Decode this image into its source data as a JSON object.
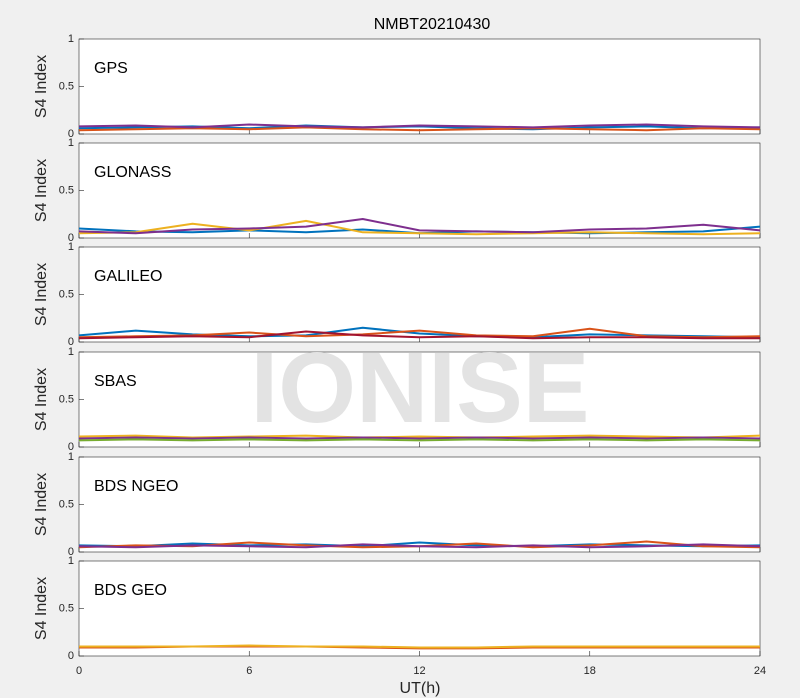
{
  "title": "NMBT20210430",
  "xlabel": "UT(h)",
  "watermark": "IONISE",
  "chart_data": [
    {
      "type": "line",
      "label": "GPS",
      "ylabel": "S4 Index",
      "x": [
        0,
        2,
        4,
        6,
        8,
        10,
        12,
        14,
        16,
        18,
        20,
        22,
        24
      ],
      "xlim": [
        0,
        24
      ],
      "xticks": [
        0,
        6,
        12,
        18,
        24
      ],
      "ylim": [
        0,
        1
      ],
      "yticks": [
        0,
        0.5,
        1
      ],
      "series": [
        {
          "color": "#0072BD",
          "values": [
            0.06,
            0.07,
            0.08,
            0.06,
            0.09,
            0.07,
            0.08,
            0.06,
            0.05,
            0.07,
            0.08,
            0.06,
            0.07
          ]
        },
        {
          "color": "#D95319",
          "values": [
            0.04,
            0.05,
            0.06,
            0.05,
            0.07,
            0.05,
            0.04,
            0.05,
            0.06,
            0.05,
            0.04,
            0.06,
            0.05
          ]
        },
        {
          "color": "#7E2F8E",
          "values": [
            0.08,
            0.09,
            0.07,
            0.1,
            0.08,
            0.07,
            0.09,
            0.08,
            0.07,
            0.09,
            0.1,
            0.08,
            0.07
          ]
        }
      ]
    },
    {
      "type": "line",
      "label": "GLONASS",
      "ylabel": "S4 Index",
      "x": [
        0,
        2,
        4,
        6,
        8,
        10,
        12,
        14,
        16,
        18,
        20,
        22,
        24
      ],
      "xlim": [
        0,
        24
      ],
      "xticks": [
        0,
        6,
        12,
        18,
        24
      ],
      "ylim": [
        0,
        1
      ],
      "yticks": [
        0,
        0.5,
        1
      ],
      "series": [
        {
          "color": "#0072BD",
          "values": [
            0.1,
            0.07,
            0.06,
            0.08,
            0.06,
            0.09,
            0.05,
            0.07,
            0.06,
            0.05,
            0.06,
            0.07,
            0.12
          ]
        },
        {
          "color": "#EDB120",
          "values": [
            0.05,
            0.06,
            0.15,
            0.08,
            0.18,
            0.06,
            0.05,
            0.04,
            0.05,
            0.06,
            0.05,
            0.04,
            0.05
          ]
        },
        {
          "color": "#7E2F8E",
          "values": [
            0.07,
            0.05,
            0.09,
            0.1,
            0.12,
            0.2,
            0.08,
            0.07,
            0.06,
            0.09,
            0.1,
            0.14,
            0.08
          ]
        }
      ]
    },
    {
      "type": "line",
      "label": "GALILEO",
      "ylabel": "S4 Index",
      "x": [
        0,
        2,
        4,
        6,
        8,
        10,
        12,
        14,
        16,
        18,
        20,
        22,
        24
      ],
      "xlim": [
        0,
        24
      ],
      "xticks": [
        0,
        6,
        12,
        18,
        24
      ],
      "ylim": [
        0,
        1
      ],
      "yticks": [
        0,
        0.5,
        1
      ],
      "series": [
        {
          "color": "#0072BD",
          "values": [
            0.07,
            0.12,
            0.08,
            0.06,
            0.07,
            0.15,
            0.09,
            0.06,
            0.05,
            0.08,
            0.07,
            0.06,
            0.05
          ]
        },
        {
          "color": "#D95319",
          "values": [
            0.05,
            0.06,
            0.07,
            0.1,
            0.06,
            0.08,
            0.12,
            0.07,
            0.06,
            0.14,
            0.06,
            0.05,
            0.06
          ]
        },
        {
          "color": "#A2142F",
          "values": [
            0.04,
            0.05,
            0.06,
            0.05,
            0.11,
            0.07,
            0.05,
            0.06,
            0.04,
            0.05,
            0.05,
            0.04,
            0.04
          ]
        }
      ]
    },
    {
      "type": "line",
      "label": "SBAS",
      "ylabel": "S4 Index",
      "x": [
        0,
        2,
        4,
        6,
        8,
        10,
        12,
        14,
        16,
        18,
        20,
        22,
        24
      ],
      "xlim": [
        0,
        24
      ],
      "xticks": [
        0,
        6,
        12,
        18,
        24
      ],
      "ylim": [
        0,
        1
      ],
      "yticks": [
        0,
        0.5,
        1
      ],
      "series": [
        {
          "color": "#EDB120",
          "values": [
            0.11,
            0.12,
            0.1,
            0.11,
            0.12,
            0.1,
            0.11,
            0.1,
            0.11,
            0.12,
            0.11,
            0.1,
            0.12
          ]
        },
        {
          "color": "#7E2F8E",
          "values": [
            0.09,
            0.1,
            0.09,
            0.1,
            0.09,
            0.1,
            0.09,
            0.1,
            0.09,
            0.1,
            0.09,
            0.1,
            0.09
          ]
        },
        {
          "color": "#77AC30",
          "values": [
            0.07,
            0.08,
            0.07,
            0.08,
            0.07,
            0.08,
            0.07,
            0.08,
            0.07,
            0.08,
            0.07,
            0.08,
            0.07
          ]
        }
      ]
    },
    {
      "type": "line",
      "label": "BDS NGEO",
      "ylabel": "S4 Index",
      "x": [
        0,
        2,
        4,
        6,
        8,
        10,
        12,
        14,
        16,
        18,
        20,
        22,
        24
      ],
      "xlim": [
        0,
        24
      ],
      "xticks": [
        0,
        6,
        12,
        18,
        24
      ],
      "ylim": [
        0,
        1
      ],
      "yticks": [
        0,
        0.5,
        1
      ],
      "series": [
        {
          "color": "#0072BD",
          "values": [
            0.07,
            0.06,
            0.09,
            0.07,
            0.08,
            0.06,
            0.1,
            0.07,
            0.06,
            0.08,
            0.07,
            0.06,
            0.07
          ]
        },
        {
          "color": "#D95319",
          "values": [
            0.05,
            0.07,
            0.06,
            0.1,
            0.07,
            0.05,
            0.06,
            0.09,
            0.05,
            0.07,
            0.11,
            0.06,
            0.05
          ]
        },
        {
          "color": "#7E2F8E",
          "values": [
            0.06,
            0.05,
            0.07,
            0.06,
            0.05,
            0.08,
            0.06,
            0.05,
            0.07,
            0.05,
            0.06,
            0.08,
            0.06
          ]
        }
      ]
    },
    {
      "type": "line",
      "label": "BDS GEO",
      "ylabel": "S4 Index",
      "x": [
        0,
        2,
        4,
        6,
        8,
        10,
        12,
        14,
        16,
        18,
        20,
        22,
        24
      ],
      "xlim": [
        0,
        24
      ],
      "xticks": [
        0,
        6,
        12,
        18,
        24
      ],
      "ylim": [
        0,
        1
      ],
      "yticks": [
        0,
        0.5,
        1
      ],
      "series": [
        {
          "color": "#D95319",
          "values": [
            0.09,
            0.09,
            0.1,
            0.1,
            0.1,
            0.09,
            0.08,
            0.08,
            0.09,
            0.09,
            0.09,
            0.09,
            0.09
          ]
        },
        {
          "color": "#EDB120",
          "values": [
            0.1,
            0.1,
            0.1,
            0.11,
            0.1,
            0.1,
            0.09,
            0.09,
            0.1,
            0.1,
            0.1,
            0.1,
            0.1
          ]
        }
      ]
    }
  ]
}
